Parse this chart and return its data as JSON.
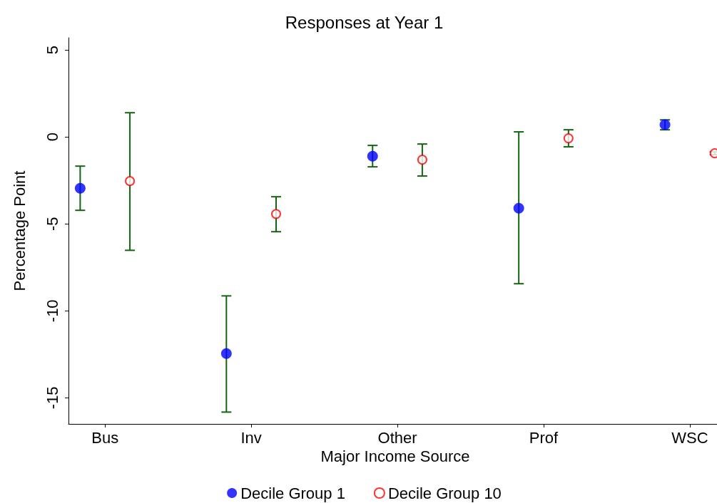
{
  "chart_data": {
    "type": "scatter",
    "title": "Responses at Year 1",
    "xlabel": "Major Income Source",
    "ylabel": "Percentage Point",
    "categories": [
      "Bus",
      "Inv",
      "Other",
      "Prof",
      "WSC"
    ],
    "series": [
      {
        "name": "Decile Group 1",
        "color": "#0000ff",
        "values": [
          -2.95,
          -12.46,
          -1.11,
          -4.1,
          0.7
        ],
        "errors": [
          [
            -4.22,
            -1.68
          ],
          [
            -15.82,
            -9.14
          ],
          [
            -1.72,
            -0.49
          ],
          [
            -8.44,
            0.29
          ],
          [
            0.41,
            0.98
          ]
        ]
      },
      {
        "name": "Decile Group 10",
        "color": "#ff0000",
        "values": [
          -2.54,
          -4.43,
          -1.31,
          -0.08,
          -0.94
        ],
        "errors": [
          [
            -6.52,
            1.39
          ],
          [
            -5.45,
            -3.44
          ],
          [
            -2.25,
            -0.41
          ],
          [
            -0.57,
            0.41
          ],
          [
            -1.02,
            -0.86
          ]
        ]
      }
    ],
    "ylim": [
      -16.5,
      5.7
    ],
    "yticks": [
      -15,
      -10,
      -5,
      0,
      5
    ],
    "grid": false,
    "legend": "bottom",
    "marker": "circle"
  }
}
